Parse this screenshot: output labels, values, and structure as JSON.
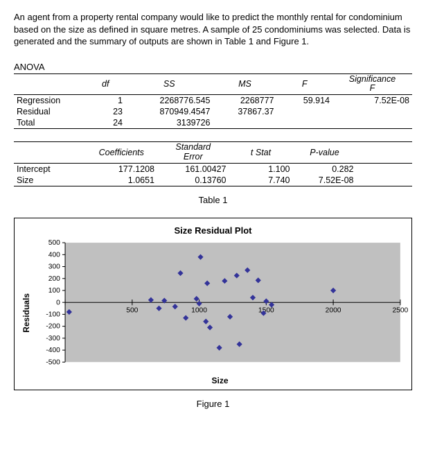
{
  "intro": "An agent from a property rental company would like to predict the monthly rental for condominium based on the size as defined in square metres. A sample of 25 condominiums was selected. Data is generated and the summary of outputs are shown in Table 1 and Figure 1.",
  "section_anova": "ANOVA",
  "anova": {
    "headers": {
      "df": "df",
      "ss": "SS",
      "ms": "MS",
      "f": "F",
      "sigf1": "Significance",
      "sigf2": "F"
    },
    "rows": [
      {
        "label": "Regression",
        "df": "1",
        "ss": "2268776.545",
        "ms": "2268777",
        "f": "59.914",
        "sigf": "7.52E-08"
      },
      {
        "label": "Residual",
        "df": "23",
        "ss": "870949.4547",
        "ms": "37867.37",
        "f": "",
        "sigf": ""
      },
      {
        "label": "Total",
        "df": "24",
        "ss": "3139726",
        "ms": "",
        "f": "",
        "sigf": ""
      }
    ]
  },
  "coef": {
    "headers": {
      "coef": "Coefficients",
      "se1": "Standard",
      "se2": "Error",
      "t": "t Stat",
      "p": "P-value"
    },
    "rows": [
      {
        "label": "Intercept",
        "coef": "177.1208",
        "se": "161.00427",
        "t": "1.100",
        "p": "0.282"
      },
      {
        "label": "Size",
        "coef": "1.0651",
        "se": "0.13760",
        "t": "7.740",
        "p": "7.52E-08"
      }
    ]
  },
  "caption_table": "Table 1",
  "caption_figure": "Figure 1",
  "chart": {
    "type": "scatter",
    "title": "Size  Residual Plot",
    "xlabel": "Size",
    "ylabel": "Residuals",
    "xlim": [
      0,
      2500
    ],
    "ylim": [
      -500,
      500
    ],
    "xticks": [
      0,
      500,
      1000,
      1500,
      2000,
      2500
    ],
    "yticks": [
      -500,
      -400,
      -300,
      -200,
      -100,
      0,
      100,
      200,
      300,
      400,
      500
    ],
    "background_color": "#c0c0c0",
    "axis_color": "#000000",
    "tick_font_size": 10,
    "marker_color": "#333399",
    "marker_size": 5,
    "points": [
      [
        30,
        -80
      ],
      [
        640,
        20
      ],
      [
        700,
        -50
      ],
      [
        740,
        15
      ],
      [
        820,
        -35
      ],
      [
        860,
        245
      ],
      [
        900,
        -130
      ],
      [
        980,
        30
      ],
      [
        1000,
        -10
      ],
      [
        1010,
        380
      ],
      [
        1050,
        -160
      ],
      [
        1060,
        160
      ],
      [
        1080,
        -210
      ],
      [
        1150,
        -380
      ],
      [
        1190,
        180
      ],
      [
        1230,
        -120
      ],
      [
        1280,
        225
      ],
      [
        1300,
        -350
      ],
      [
        1360,
        270
      ],
      [
        1400,
        40
      ],
      [
        1440,
        185
      ],
      [
        1480,
        -90
      ],
      [
        1500,
        10
      ],
      [
        1540,
        -20
      ],
      [
        2000,
        100
      ]
    ]
  }
}
